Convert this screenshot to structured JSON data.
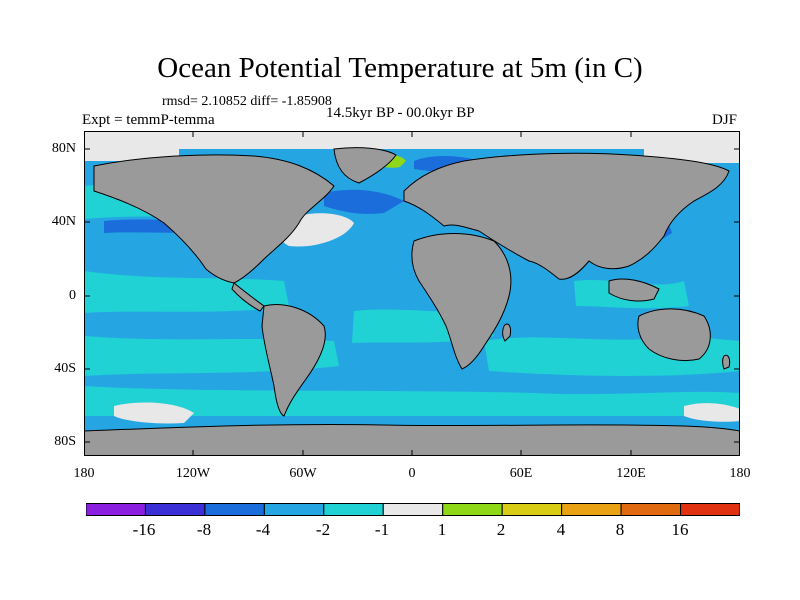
{
  "title": "Ocean Potential Temperature at 5m (in C)",
  "stats": "rmsd= 2.10852 diff= -1.85908",
  "period": "14.5kyr BP - 00.0kyr BP",
  "experiment": "Expt = temmP-temma",
  "season": "DJF",
  "axes": {
    "lat_labels": [
      "80N",
      "40N",
      "0",
      "40S",
      "80S"
    ],
    "lon_labels": [
      "180",
      "120W",
      "60W",
      "0",
      "60E",
      "120E",
      "180"
    ]
  },
  "colorbar": {
    "labels": [
      "-16",
      "-8",
      "-4",
      "-2",
      "-1",
      "1",
      "2",
      "4",
      "8",
      "16"
    ],
    "colors": [
      "#8a1fe0",
      "#3b2fd6",
      "#1b6ddc",
      "#25a6e3",
      "#20d2d4",
      "#e8e8e8",
      "#8fd817",
      "#d8cc15",
      "#e9a214",
      "#e06a0f",
      "#e03211"
    ]
  },
  "colors": {
    "land": "#9a9a9a",
    "ocean_main": "#25a6e3",
    "ocean_light": "#20d2d4",
    "near_zero": "#e8e8e8",
    "cold": "#1b6ddc",
    "very_cold": "#3b2fd6",
    "warm": "#8fd817"
  }
}
